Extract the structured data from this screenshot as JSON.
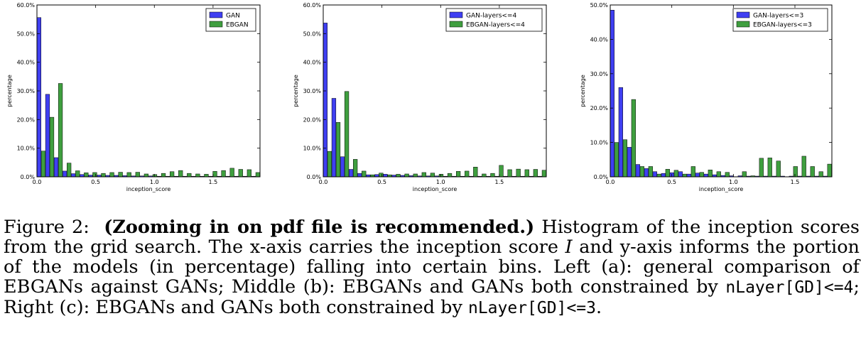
{
  "colors": {
    "gan": "#3f3ff2",
    "ebgan": "#3f9f3f"
  },
  "chart_data": [
    {
      "type": "bar",
      "xlabel": "inception_score",
      "ylabel": "percentage",
      "xlim": [
        0,
        1.9
      ],
      "ylim": [
        0,
        60
      ],
      "xticks": [
        "0.0",
        "0.5",
        "1.0",
        "1.5"
      ],
      "xtick_values": [
        0,
        0.5,
        1.0,
        1.5
      ],
      "yticks": [
        "0.0%",
        "10.0%",
        "20.0%",
        "30.0%",
        "40.0%",
        "50.0%",
        "60.0%"
      ],
      "ytick_values": [
        0,
        10,
        20,
        30,
        40,
        50,
        60
      ],
      "bin_width": 0.0731,
      "legend_position": "top-right",
      "series": [
        {
          "name": "GAN",
          "color_key": "gan",
          "values": [
            55.6,
            28.8,
            6.7,
            2.0,
            1.1,
            0.8,
            0.6,
            0.6,
            0.5,
            0.5,
            0.4,
            0.3,
            0.3,
            0.3,
            0.2,
            0.2,
            0.2,
            0.2,
            0.2,
            0.2,
            0.2,
            0.2,
            0.2,
            0.2,
            0.2,
            0.2
          ]
        },
        {
          "name": "EBGAN",
          "color_key": "ebgan",
          "values": [
            9.0,
            20.8,
            32.6,
            4.8,
            2.1,
            1.4,
            1.5,
            1.2,
            1.5,
            1.6,
            1.5,
            1.6,
            1.0,
            0.8,
            1.2,
            1.8,
            2.2,
            1.2,
            1.0,
            0.9,
            1.9,
            2.2,
            3.0,
            2.6,
            2.5,
            1.5
          ]
        }
      ]
    },
    {
      "type": "bar",
      "xlabel": "inception_score",
      "ylabel": "percentage",
      "xlim": [
        0,
        1.9
      ],
      "ylim": [
        0,
        60
      ],
      "xticks": [
        "0.0",
        "0.5",
        "1.0",
        "1.5"
      ],
      "xtick_values": [
        0,
        0.5,
        1.0,
        1.5
      ],
      "yticks": [
        "0.0%",
        "10.0%",
        "20.0%",
        "30.0%",
        "40.0%",
        "50.0%",
        "60.0%"
      ],
      "ytick_values": [
        0,
        10,
        20,
        30,
        40,
        50,
        60
      ],
      "bin_width": 0.0731,
      "legend_position": "top-right",
      "series": [
        {
          "name": "GAN-layers<=4",
          "color_key": "gan",
          "values": [
            53.7,
            27.4,
            7.0,
            2.6,
            1.2,
            0.7,
            0.8,
            0.9,
            0.6,
            0.5,
            0.4,
            0.3,
            0.3,
            0.3,
            0.2,
            0.2,
            0.2,
            0.2,
            0.2,
            0.2,
            0.2,
            0.2,
            0.2,
            0.2,
            0.2,
            0.2
          ]
        },
        {
          "name": "EBGAN-layers<=4",
          "color_key": "ebgan",
          "values": [
            8.9,
            19.0,
            29.8,
            6.1,
            2.0,
            0.7,
            1.3,
            0.7,
            0.9,
            1.0,
            1.0,
            1.5,
            1.3,
            0.9,
            1.2,
            1.9,
            2.0,
            3.4,
            1.0,
            1.2,
            4.0,
            2.5,
            2.7,
            2.5,
            2.6,
            2.3
          ]
        }
      ]
    },
    {
      "type": "bar",
      "xlabel": "inception_score",
      "ylabel": "percentage",
      "xlim": [
        0,
        1.8
      ],
      "ylim": [
        0,
        50
      ],
      "xticks": [
        "0.0",
        "0.5",
        "1.0",
        "1.5"
      ],
      "xtick_values": [
        0,
        0.5,
        1.0,
        1.5
      ],
      "yticks": [
        "0.0%",
        "10.0%",
        "20.0%",
        "30.0%",
        "40.0%",
        "50.0%"
      ],
      "ytick_values": [
        0,
        10,
        20,
        30,
        40,
        50
      ],
      "bin_width": 0.0692,
      "legend_position": "top-right",
      "series": [
        {
          "name": "GAN-layers<=3",
          "color_key": "gan",
          "values": [
            48.5,
            26.0,
            8.6,
            3.6,
            2.4,
            1.5,
            1.0,
            1.2,
            1.5,
            0.8,
            1.1,
            0.8,
            0.6,
            0.4,
            0.3,
            0.3,
            0.2,
            0.2,
            0.2,
            0.2,
            0.2,
            0.2,
            0.2,
            0.2,
            0.2,
            0.2
          ]
        },
        {
          "name": "EBGAN-layers<=3",
          "color_key": "ebgan",
          "values": [
            10.0,
            10.8,
            22.5,
            3.0,
            3.0,
            0.8,
            2.2,
            1.9,
            0.8,
            3.0,
            1.3,
            2.0,
            1.5,
            1.3,
            0.0,
            1.5,
            0.3,
            5.4,
            5.5,
            4.6,
            0.0,
            3.0,
            6.0,
            3.0,
            1.5,
            3.7
          ]
        }
      ]
    }
  ],
  "caption": {
    "figure_label": "Figure 2:",
    "bold_note": "(Zooming in on pdf file is recommended.)",
    "part1": "Histogram of the inception scores from the grid search. The x-axis carries the inception score",
    "symbol": "I",
    "part2": "and y-axis informs the portion of the models (in percentage) falling into certain bins. Left (a): general comparison of EBGANs against GANs; Middle (b): EBGANs and GANs both constrained by",
    "code1": "nLayer[GD]<=4",
    "part3": "; Right (c): EBGANs and GANs both constrained by",
    "code2": "nLayer[GD]<=3",
    "part4": "."
  }
}
